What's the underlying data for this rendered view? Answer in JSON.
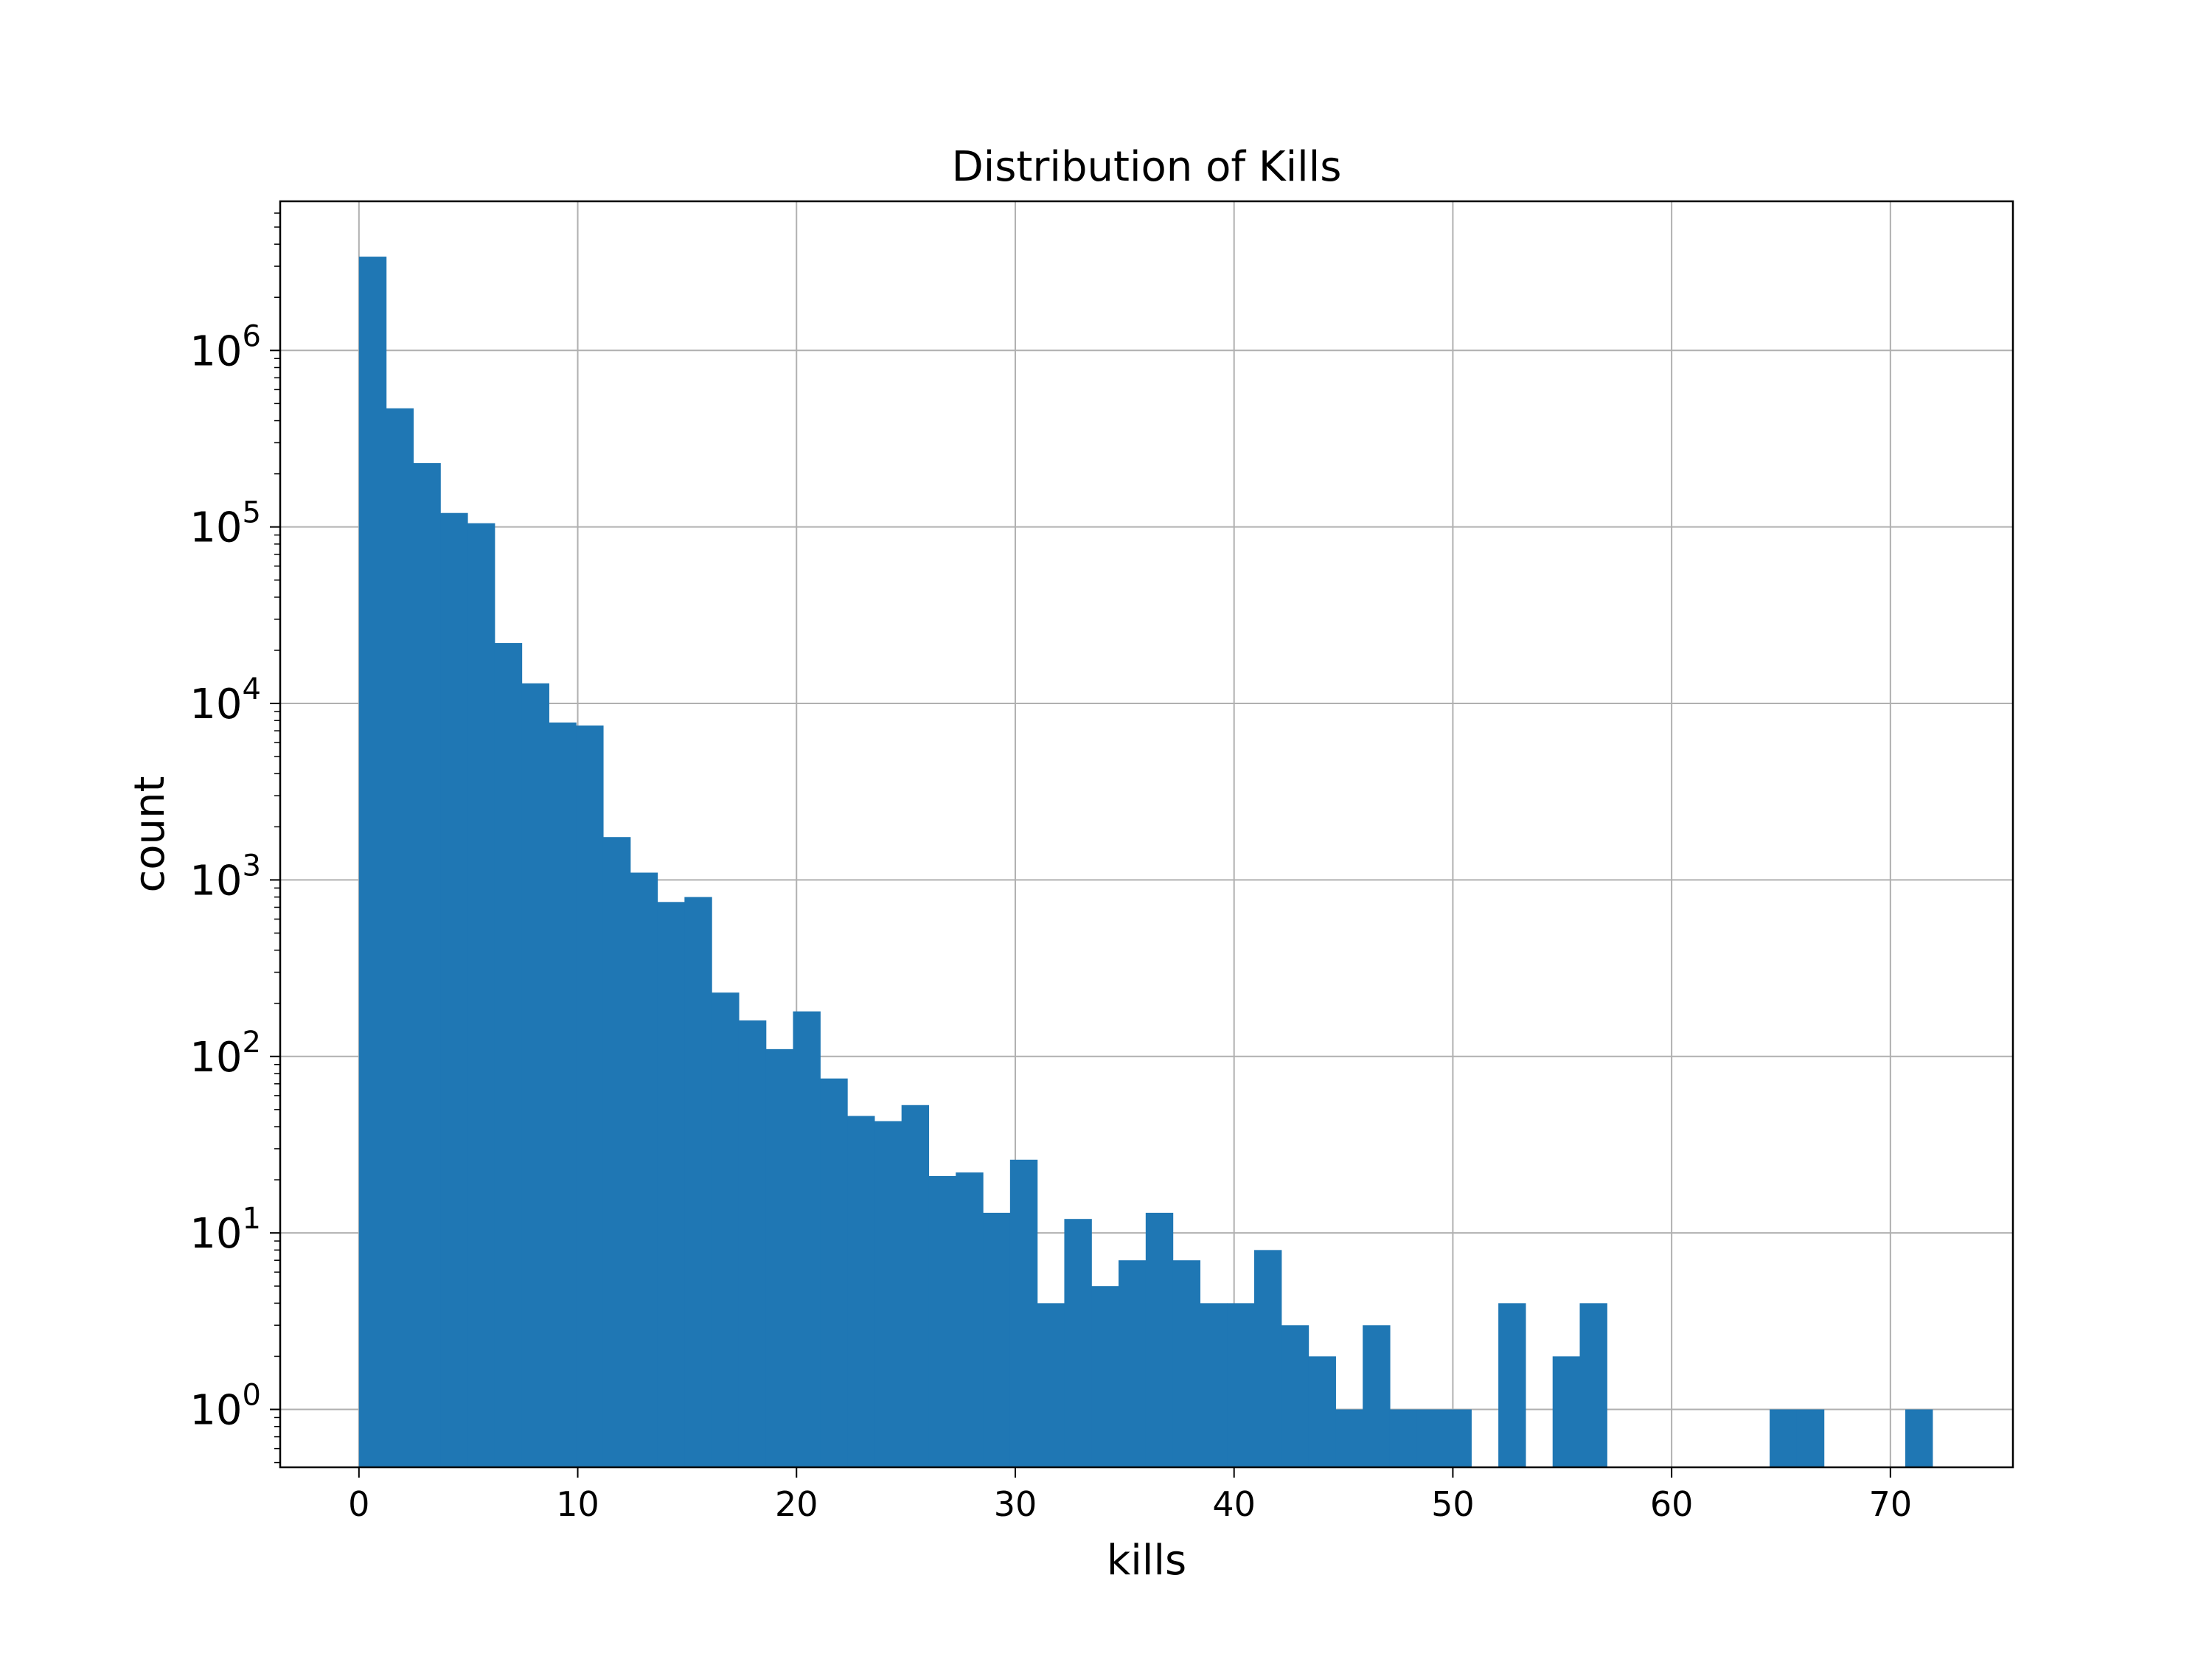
{
  "chart_data": {
    "type": "bar",
    "title": "Distribution of Kills",
    "xlabel": "kills",
    "ylabel": "count",
    "yscale": "log",
    "grid": true,
    "xlim": [
      -3.6,
      75.6
    ],
    "ylim": [
      0.47,
      7000000
    ],
    "xticks": [
      0,
      10,
      20,
      30,
      40,
      50,
      60,
      70
    ],
    "yticks": [
      {
        "base": "10",
        "exp": "0",
        "value": 1
      },
      {
        "base": "10",
        "exp": "1",
        "value": 10
      },
      {
        "base": "10",
        "exp": "2",
        "value": 100
      },
      {
        "base": "10",
        "exp": "3",
        "value": 1000
      },
      {
        "base": "10",
        "exp": "4",
        "value": 10000
      },
      {
        "base": "10",
        "exp": "5",
        "value": 100000
      },
      {
        "base": "10",
        "exp": "6",
        "value": 1000000
      }
    ],
    "bin_edges": [
      0,
      1.24,
      2.48,
      3.72,
      4.96,
      6.2,
      7.44,
      8.68,
      9.92,
      11.16,
      12.4,
      13.64,
      14.88,
      16.12,
      17.36,
      18.6,
      19.84,
      21.08,
      22.32,
      23.56,
      24.8,
      26.04,
      27.28,
      28.52,
      29.76,
      31.0,
      32.24,
      33.48,
      34.72,
      35.96,
      37.2,
      38.44,
      39.68,
      40.92,
      42.16,
      43.4,
      44.64,
      45.88,
      47.12,
      48.36,
      49.6,
      50.84,
      52.08,
      53.32,
      54.56,
      55.8,
      57.04,
      58.28,
      59.52,
      60.76,
      62.0,
      63.24,
      64.48,
      65.72,
      66.96,
      68.2,
      69.44,
      70.68,
      71.92
    ],
    "values": [
      3400000,
      470000,
      230000,
      120000,
      105000,
      22000,
      13000,
      7800,
      7500,
      1750,
      1100,
      750,
      800,
      230,
      160,
      110,
      180,
      75,
      46,
      43,
      53,
      21,
      22,
      13,
      26,
      4,
      12,
      5,
      7,
      13,
      7,
      4,
      4,
      8,
      3,
      2,
      1,
      3,
      1,
      1,
      1,
      0,
      4,
      0,
      2,
      4,
      0,
      0,
      0,
      0,
      0,
      0,
      1,
      1,
      0,
      0,
      0,
      1
    ],
    "color": "#1f77b4"
  }
}
